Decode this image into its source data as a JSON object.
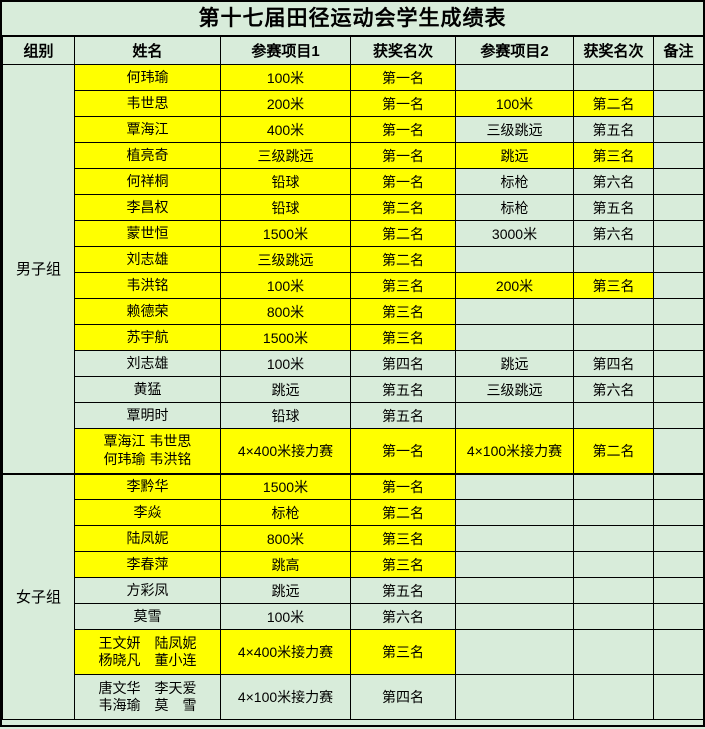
{
  "title": "第十七届田径运动会学生成绩表",
  "columns": [
    "组别",
    "姓名",
    "参赛项目1",
    "获奖名次",
    "参赛项目2",
    "获奖名次",
    "备注"
  ],
  "colors": {
    "highlight": "#ffff00",
    "base": "#d8ecda",
    "border": "#000000"
  },
  "groups": [
    {
      "label": "男子组",
      "rows": [
        {
          "cells": [
            "何玮瑜",
            "100米",
            "第一名",
            "",
            "",
            ""
          ],
          "hl": [
            true,
            true,
            true,
            false,
            false,
            false
          ],
          "tall": false
        },
        {
          "cells": [
            "韦世思",
            "200米",
            "第一名",
            "100米",
            "第二名",
            ""
          ],
          "hl": [
            true,
            true,
            true,
            true,
            true,
            false
          ],
          "tall": false
        },
        {
          "cells": [
            "覃海江",
            "400米",
            "第一名",
            "三级跳远",
            "第五名",
            ""
          ],
          "hl": [
            true,
            true,
            true,
            false,
            false,
            false
          ],
          "tall": false
        },
        {
          "cells": [
            "植亮奇",
            "三级跳远",
            "第一名",
            "跳远",
            "第三名",
            ""
          ],
          "hl": [
            true,
            true,
            true,
            true,
            true,
            false
          ],
          "tall": false
        },
        {
          "cells": [
            "何祥桐",
            "铅球",
            "第一名",
            "标枪",
            "第六名",
            ""
          ],
          "hl": [
            true,
            true,
            true,
            false,
            false,
            false
          ],
          "tall": false
        },
        {
          "cells": [
            "李昌权",
            "铅球",
            "第二名",
            "标枪",
            "第五名",
            ""
          ],
          "hl": [
            true,
            true,
            true,
            false,
            false,
            false
          ],
          "tall": false
        },
        {
          "cells": [
            "蒙世恒",
            "1500米",
            "第二名",
            "3000米",
            "第六名",
            ""
          ],
          "hl": [
            true,
            true,
            true,
            false,
            false,
            false
          ],
          "tall": false
        },
        {
          "cells": [
            "刘志雄",
            "三级跳远",
            "第二名",
            "",
            "",
            ""
          ],
          "hl": [
            true,
            true,
            true,
            false,
            false,
            false
          ],
          "tall": false
        },
        {
          "cells": [
            "韦洪铭",
            "100米",
            "第三名",
            "200米",
            "第三名",
            ""
          ],
          "hl": [
            true,
            true,
            true,
            true,
            true,
            false
          ],
          "tall": false
        },
        {
          "cells": [
            "赖德荣",
            "800米",
            "第三名",
            "",
            "",
            ""
          ],
          "hl": [
            true,
            true,
            true,
            false,
            false,
            false
          ],
          "tall": false
        },
        {
          "cells": [
            "苏宇航",
            "1500米",
            "第三名",
            "",
            "",
            ""
          ],
          "hl": [
            true,
            true,
            true,
            false,
            false,
            false
          ],
          "tall": false
        },
        {
          "cells": [
            "刘志雄",
            "100米",
            "第四名",
            "跳远",
            "第四名",
            ""
          ],
          "hl": [
            false,
            false,
            false,
            false,
            false,
            false
          ],
          "tall": false
        },
        {
          "cells": [
            "黄猛",
            "跳远",
            "第五名",
            "三级跳远",
            "第六名",
            ""
          ],
          "hl": [
            false,
            false,
            false,
            false,
            false,
            false
          ],
          "tall": false
        },
        {
          "cells": [
            "覃明时",
            "铅球",
            "第五名",
            "",
            "",
            ""
          ],
          "hl": [
            false,
            false,
            false,
            false,
            false,
            false
          ],
          "tall": false
        },
        {
          "cells": [
            "覃海江 韦世思\n何玮瑜 韦洪铭",
            "4×400米接力赛",
            "第一名",
            "4×100米接力赛",
            "第二名",
            ""
          ],
          "hl": [
            true,
            true,
            true,
            true,
            true,
            false
          ],
          "tall": true
        }
      ]
    },
    {
      "label": "女子组",
      "rows": [
        {
          "cells": [
            "李黔华",
            "1500米",
            "第一名",
            "",
            "",
            ""
          ],
          "hl": [
            true,
            true,
            true,
            false,
            false,
            false
          ],
          "tall": false
        },
        {
          "cells": [
            "李焱",
            "标枪",
            "第二名",
            "",
            "",
            ""
          ],
          "hl": [
            true,
            true,
            true,
            false,
            false,
            false
          ],
          "tall": false
        },
        {
          "cells": [
            "陆凤妮",
            "800米",
            "第三名",
            "",
            "",
            ""
          ],
          "hl": [
            true,
            true,
            true,
            false,
            false,
            false
          ],
          "tall": false
        },
        {
          "cells": [
            "李春萍",
            "跳高",
            "第三名",
            "",
            "",
            ""
          ],
          "hl": [
            true,
            true,
            true,
            false,
            false,
            false
          ],
          "tall": false
        },
        {
          "cells": [
            "方彩凤",
            "跳远",
            "第五名",
            "",
            "",
            ""
          ],
          "hl": [
            false,
            false,
            false,
            false,
            false,
            false
          ],
          "tall": false
        },
        {
          "cells": [
            "莫雪",
            "100米",
            "第六名",
            "",
            "",
            ""
          ],
          "hl": [
            false,
            false,
            false,
            false,
            false,
            false
          ],
          "tall": false
        },
        {
          "cells": [
            "王文妍　陆凤妮\n杨晓凡　董小连",
            "4×400米接力赛",
            "第三名",
            "",
            "",
            ""
          ],
          "hl": [
            true,
            true,
            true,
            false,
            false,
            false
          ],
          "tall": true
        },
        {
          "cells": [
            "唐文华　李天爱\n韦海瑜　莫　雪",
            "4×100米接力赛",
            "第四名",
            "",
            "",
            ""
          ],
          "hl": [
            false,
            false,
            false,
            false,
            false,
            false
          ],
          "tall": true
        }
      ]
    }
  ]
}
